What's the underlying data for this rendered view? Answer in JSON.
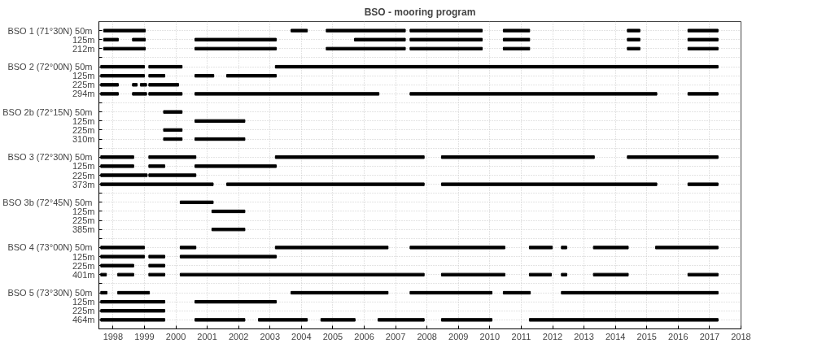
{
  "chart_data": {
    "type": "bar",
    "orientation": "horizontal",
    "title": "BSO - mooring program",
    "categories": [
      "BSO 1 (71°30N)  50m",
      "125m",
      "212m",
      null,
      "BSO 2 (72°00N)  50m",
      "125m",
      "225m",
      "294m",
      null,
      "BSO 2b (72°15N)  50m",
      "125m",
      "225m",
      "310m",
      null,
      "BSO 3 (72°30N)  50m",
      "125m",
      "225m",
      "373m",
      null,
      "BSO 3b (72°45N)  50m",
      "125m",
      "225m",
      "385m",
      null,
      "BSO 4 (73°00N)  50m",
      "125m",
      "225m",
      "401m",
      null,
      "BSO 5 (73°30N)  50m",
      "125m",
      "225m",
      "464m"
    ],
    "xlim": [
      1997.55,
      2018
    ],
    "xticks": [
      1998,
      1999,
      2000,
      2001,
      2002,
      2003,
      2004,
      2005,
      2006,
      2007,
      2008,
      2009,
      2010,
      2011,
      2012,
      2013,
      2014,
      2015,
      2016,
      2017,
      2018
    ],
    "grid": true,
    "series": [
      {
        "color": "#000000",
        "base": [
          1997.7,
          1997.7,
          1997.7,
          null,
          1997.61,
          1997.61,
          1997.61,
          1997.61,
          null,
          1999.61,
          2000.61,
          1999.61,
          1999.61,
          null,
          1997.61,
          1997.61,
          1997.61,
          1997.61,
          null,
          2000.14,
          2001.15,
          null,
          2001.15,
          null,
          1997.61,
          1997.61,
          1997.61,
          1997.61,
          null,
          1997.61,
          1997.61,
          1997.61,
          1997.61
        ],
        "values": [
          1.33,
          0.47,
          1.33,
          null,
          1.39,
          1.39,
          0.56,
          0.56,
          null,
          0.59,
          1.59,
          0.59,
          0.59,
          null,
          1.05,
          1.05,
          1.48,
          3.58,
          null,
          1.05,
          1.05,
          null,
          1.05,
          null,
          1.39,
          1.39,
          1.05,
          0.18,
          null,
          0.2,
          2.04,
          2.04,
          2.04
        ]
      },
      {
        "color": "#000000",
        "base": [
          2003.67,
          1998.62,
          2000.61,
          null,
          1999.14,
          1999.14,
          1998.62,
          1998.62,
          null,
          null,
          null,
          null,
          2000.61,
          null,
          1999.14,
          1999.14,
          1999.14,
          2001.62,
          null,
          null,
          null,
          null,
          null,
          null,
          2000.14,
          1999.14,
          1999.14,
          1998.15,
          null,
          1998.15,
          2000.61,
          null,
          2000.61
        ],
        "values": [
          0.52,
          0.41,
          2.59,
          null,
          1.06,
          0.51,
          0.15,
          0.45,
          null,
          null,
          null,
          null,
          1.59,
          null,
          1.5,
          0.51,
          1.5,
          6.29,
          null,
          null,
          null,
          null,
          null,
          null,
          0.5,
          0.51,
          0.51,
          0.51,
          null,
          1.01,
          2.59,
          null,
          1.59
        ]
      },
      {
        "color": "#000000",
        "base": [
          2004.79,
          2000.61,
          2004.79,
          null,
          2003.17,
          2000.61,
          1998.87,
          1999.14,
          null,
          null,
          null,
          null,
          null,
          null,
          2003.17,
          2000.61,
          null,
          2008.46,
          null,
          null,
          null,
          null,
          null,
          null,
          2003.17,
          2000.14,
          null,
          1999.14,
          null,
          2003.67,
          null,
          null,
          2002.63
        ],
        "values": [
          2.52,
          2.59,
          2.52,
          null,
          14.1,
          0.6,
          0.2,
          1.06,
          null,
          null,
          null,
          null,
          null,
          null,
          4.74,
          2.59,
          null,
          6.86,
          null,
          null,
          null,
          null,
          null,
          null,
          3.59,
          3.06,
          null,
          0.51,
          null,
          3.09,
          null,
          null,
          1.56
        ]
      },
      {
        "color": "#000000",
        "base": [
          2007.46,
          2005.69,
          2007.46,
          null,
          null,
          2001.62,
          1999.14,
          2000.61,
          null,
          null,
          null,
          null,
          null,
          null,
          2008.46,
          null,
          null,
          2016.31,
          null,
          null,
          null,
          null,
          null,
          null,
          2007.46,
          null,
          null,
          2000.14,
          null,
          2007.46,
          null,
          null,
          2004.62
        ],
        "values": [
          2.3,
          1.62,
          2.3,
          null,
          null,
          1.58,
          0.95,
          5.86,
          null,
          null,
          null,
          null,
          null,
          null,
          4.87,
          null,
          null,
          0.96,
          null,
          null,
          null,
          null,
          null,
          null,
          3.02,
          null,
          null,
          7.77,
          null,
          2.61,
          null,
          null,
          1.09
        ]
      },
      {
        "color": "#000000",
        "base": [
          2010.43,
          2007.46,
          2010.43,
          null,
          null,
          null,
          null,
          2007.46,
          null,
          null,
          null,
          null,
          null,
          null,
          2014.38,
          null,
          null,
          null,
          null,
          null,
          null,
          null,
          null,
          null,
          2011.26,
          null,
          null,
          2008.46,
          null,
          2010.43,
          null,
          null,
          2006.44
        ],
        "values": [
          0.84,
          2.3,
          0.84,
          null,
          null,
          null,
          null,
          7.86,
          null,
          null,
          null,
          null,
          null,
          null,
          2.89,
          null,
          null,
          null,
          null,
          null,
          null,
          null,
          null,
          null,
          0.73,
          null,
          null,
          2.02,
          null,
          0.86,
          null,
          null,
          1.47
        ]
      },
      {
        "color": "#000000",
        "base": [
          2014.38,
          2010.43,
          2014.38,
          null,
          null,
          null,
          null,
          2016.31,
          null,
          null,
          null,
          null,
          null,
          null,
          null,
          null,
          null,
          null,
          null,
          null,
          null,
          null,
          null,
          null,
          2012.28,
          null,
          null,
          2011.26,
          null,
          2012.28,
          null,
          null,
          2008.46
        ],
        "values": [
          0.4,
          0.84,
          0.4,
          null,
          null,
          null,
          null,
          0.96,
          null,
          null,
          null,
          null,
          null,
          null,
          null,
          null,
          null,
          null,
          null,
          null,
          null,
          null,
          null,
          null,
          0.17,
          null,
          null,
          0.7,
          null,
          4.99,
          null,
          null,
          1.61
        ]
      },
      {
        "color": "#000000",
        "base": [
          2016.31,
          2014.38,
          2016.31,
          null,
          null,
          null,
          null,
          null,
          null,
          null,
          null,
          null,
          null,
          null,
          null,
          null,
          null,
          null,
          null,
          null,
          null,
          null,
          null,
          null,
          2013.3,
          null,
          null,
          2012.28,
          null,
          null,
          null,
          null,
          2011.26
        ],
        "values": [
          0.96,
          0.4,
          0.96,
          null,
          null,
          null,
          null,
          null,
          null,
          null,
          null,
          null,
          null,
          null,
          null,
          null,
          null,
          null,
          null,
          null,
          null,
          null,
          null,
          null,
          1.11,
          null,
          null,
          0.17,
          null,
          null,
          null,
          null,
          6.01
        ]
      },
      {
        "color": "#000000",
        "base": [
          null,
          2016.31,
          null,
          null,
          null,
          null,
          null,
          null,
          null,
          null,
          null,
          null,
          null,
          null,
          null,
          null,
          null,
          null,
          null,
          null,
          null,
          null,
          null,
          null,
          2015.28,
          null,
          null,
          2013.3,
          null,
          null,
          null,
          null,
          null
        ],
        "values": [
          null,
          0.96,
          null,
          null,
          null,
          null,
          null,
          null,
          null,
          null,
          null,
          null,
          null,
          null,
          null,
          null,
          null,
          null,
          null,
          null,
          null,
          null,
          null,
          null,
          1.99,
          null,
          null,
          1.11,
          null,
          null,
          null,
          null,
          null
        ]
      },
      {
        "color": "#000000",
        "base": [
          null,
          null,
          null,
          null,
          null,
          null,
          null,
          null,
          null,
          null,
          null,
          null,
          null,
          null,
          null,
          null,
          null,
          null,
          null,
          null,
          null,
          null,
          null,
          null,
          null,
          null,
          null,
          2016.31,
          null,
          null,
          null,
          null,
          null
        ],
        "values": [
          null,
          null,
          null,
          null,
          null,
          null,
          null,
          null,
          null,
          null,
          null,
          null,
          null,
          null,
          null,
          null,
          null,
          null,
          null,
          null,
          null,
          null,
          null,
          null,
          null,
          null,
          null,
          0.96,
          null,
          null,
          null,
          null,
          null
        ]
      }
    ]
  }
}
